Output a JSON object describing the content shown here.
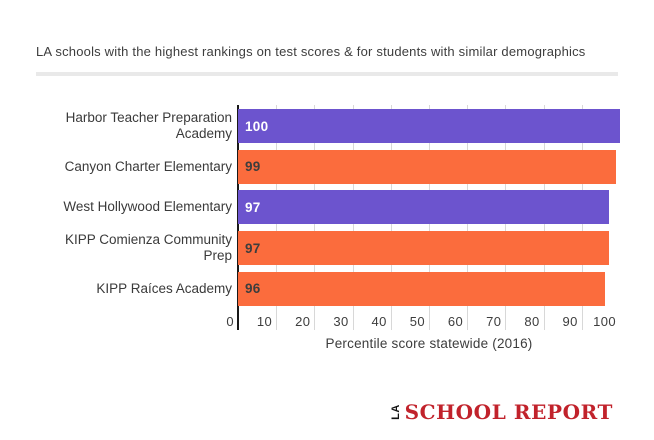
{
  "page": {
    "background_color": "#ffffff",
    "text_color": "#3d3d3d"
  },
  "title": "LA schools with the highest rankings on test scores & for students with similar demographics",
  "chart_data": {
    "type": "bar",
    "orientation": "horizontal",
    "title": "LA schools with the highest rankings on test scores & for students with similar demographics",
    "categories": [
      "Harbor Teacher Preparation Academy",
      "Canyon Charter Elementary",
      "West Hollywood Elementary",
      "KIPP Comienza Community Prep",
      "KIPP Raíces Academy"
    ],
    "values": [
      100,
      99,
      97,
      97,
      96
    ],
    "bar_colors": [
      "#6c54ce",
      "#fb6c3d",
      "#6c54ce",
      "#fb6c3d",
      "#fb6c3d"
    ],
    "value_label_colors": [
      "#ffffff",
      "#3d3d3d",
      "#ffffff",
      "#3d3d3d",
      "#3d3d3d"
    ],
    "xlabel": "Percentile score statewide (2016)",
    "ylabel": "",
    "xticks": [
      0,
      10,
      20,
      30,
      40,
      50,
      60,
      70,
      80,
      90,
      100
    ],
    "xlim": [
      0,
      100
    ],
    "grid": true,
    "gridline_color": "#d8d8d8",
    "axis_color": "#191919",
    "legend": "none"
  },
  "footer": {
    "logo_la": "LA",
    "logo_text": "SCHOOL REPORT",
    "logo_text_color": "#c1222b"
  }
}
